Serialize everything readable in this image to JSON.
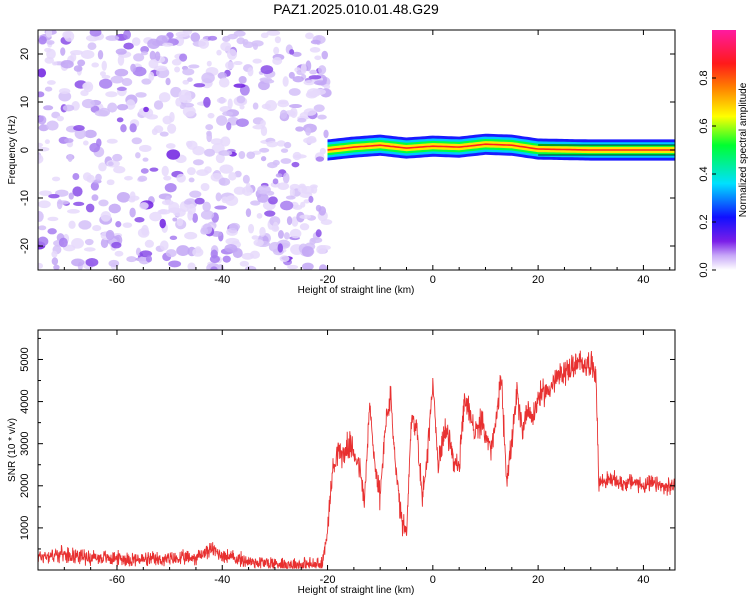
{
  "title": "PAZ1.2025.010.01.48.G29",
  "chart_data": [
    {
      "type": "heatmap",
      "xlabel": "Height of straight line (km)",
      "ylabel": "Frequency (Hz)",
      "xlim": [
        -75,
        46
      ],
      "ylim": [
        -25,
        25
      ],
      "x_ticks": [
        -60,
        -40,
        -20,
        0,
        20,
        40
      ],
      "y_ticks": [
        -20,
        -10,
        0,
        10,
        20
      ],
      "colorbar": {
        "label": "Normalized spectral amplitude",
        "range": [
          0,
          1
        ],
        "ticks": [
          0.0,
          0.2,
          0.4,
          0.6,
          0.8
        ],
        "colormap": "rainbow: white/violet -> blue -> cyan -> green -> yellow -> red -> magenta"
      },
      "regions": [
        {
          "x_range": [
            -75,
            -20
          ],
          "description": "noise: scattered low amplitudes (0.0-0.3) over all frequencies"
        },
        {
          "x_range": [
            -20,
            46
          ],
          "description": "narrow signal band near 0 Hz; amplitude about 0.3-0.8, wandering between -1 and +2 Hz, strongest (~0.8) after 20 km"
        }
      ],
      "ridge_frequency": {
        "x": [
          -20,
          -15,
          -10,
          -5,
          0,
          5,
          10,
          15,
          20,
          30,
          40,
          46
        ],
        "y": [
          0.0,
          0.6,
          1.0,
          0.4,
          0.8,
          0.6,
          1.2,
          1.0,
          0.2,
          0.0,
          0.0,
          0.0
        ]
      }
    },
    {
      "type": "line",
      "xlabel": "Height of straight line (km)",
      "ylabel": "SNR (10 * v/v)",
      "xlim": [
        -75,
        46
      ],
      "ylim": [
        0,
        5700
      ],
      "x_ticks": [
        -60,
        -40,
        -20,
        0,
        20,
        40
      ],
      "y_ticks": [
        1000,
        2000,
        3000,
        4000,
        5000
      ],
      "color": "#e83030",
      "series": [
        {
          "x": [
            -75,
            -70,
            -65,
            -60,
            -55,
            -50,
            -45,
            -42,
            -40,
            -35,
            -30,
            -25,
            -21,
            -20,
            -19,
            -18,
            -17,
            -16,
            -15,
            -14,
            -13,
            -12,
            -11,
            -10,
            -9,
            -8,
            -7,
            -6,
            -5,
            -4,
            -3,
            -2,
            -1,
            0,
            1,
            2,
            3,
            4,
            5,
            6,
            7,
            8,
            9,
            10,
            11,
            12,
            13,
            14,
            15,
            16,
            17,
            18,
            19,
            20,
            22,
            24,
            26,
            28,
            30,
            31,
            31.5,
            32,
            34,
            36,
            38,
            40,
            42,
            44,
            46
          ],
          "y": [
            320,
            380,
            300,
            280,
            240,
            250,
            300,
            500,
            350,
            200,
            150,
            130,
            120,
            1000,
            2400,
            2900,
            2700,
            3000,
            2800,
            2500,
            1600,
            3900,
            2500,
            1700,
            3500,
            4100,
            2300,
            1200,
            800,
            3700,
            3300,
            1700,
            2800,
            4500,
            2400,
            3300,
            3200,
            2600,
            2400,
            4000,
            3800,
            3200,
            3500,
            3300,
            2800,
            3500,
            4600,
            2200,
            3000,
            4200,
            3300,
            3900,
            3600,
            4100,
            4300,
            4600,
            4800,
            4900,
            4900,
            4700,
            2100,
            2100,
            2150,
            2050,
            2100,
            2000,
            2050,
            1950,
            2000
          ]
        }
      ]
    }
  ]
}
